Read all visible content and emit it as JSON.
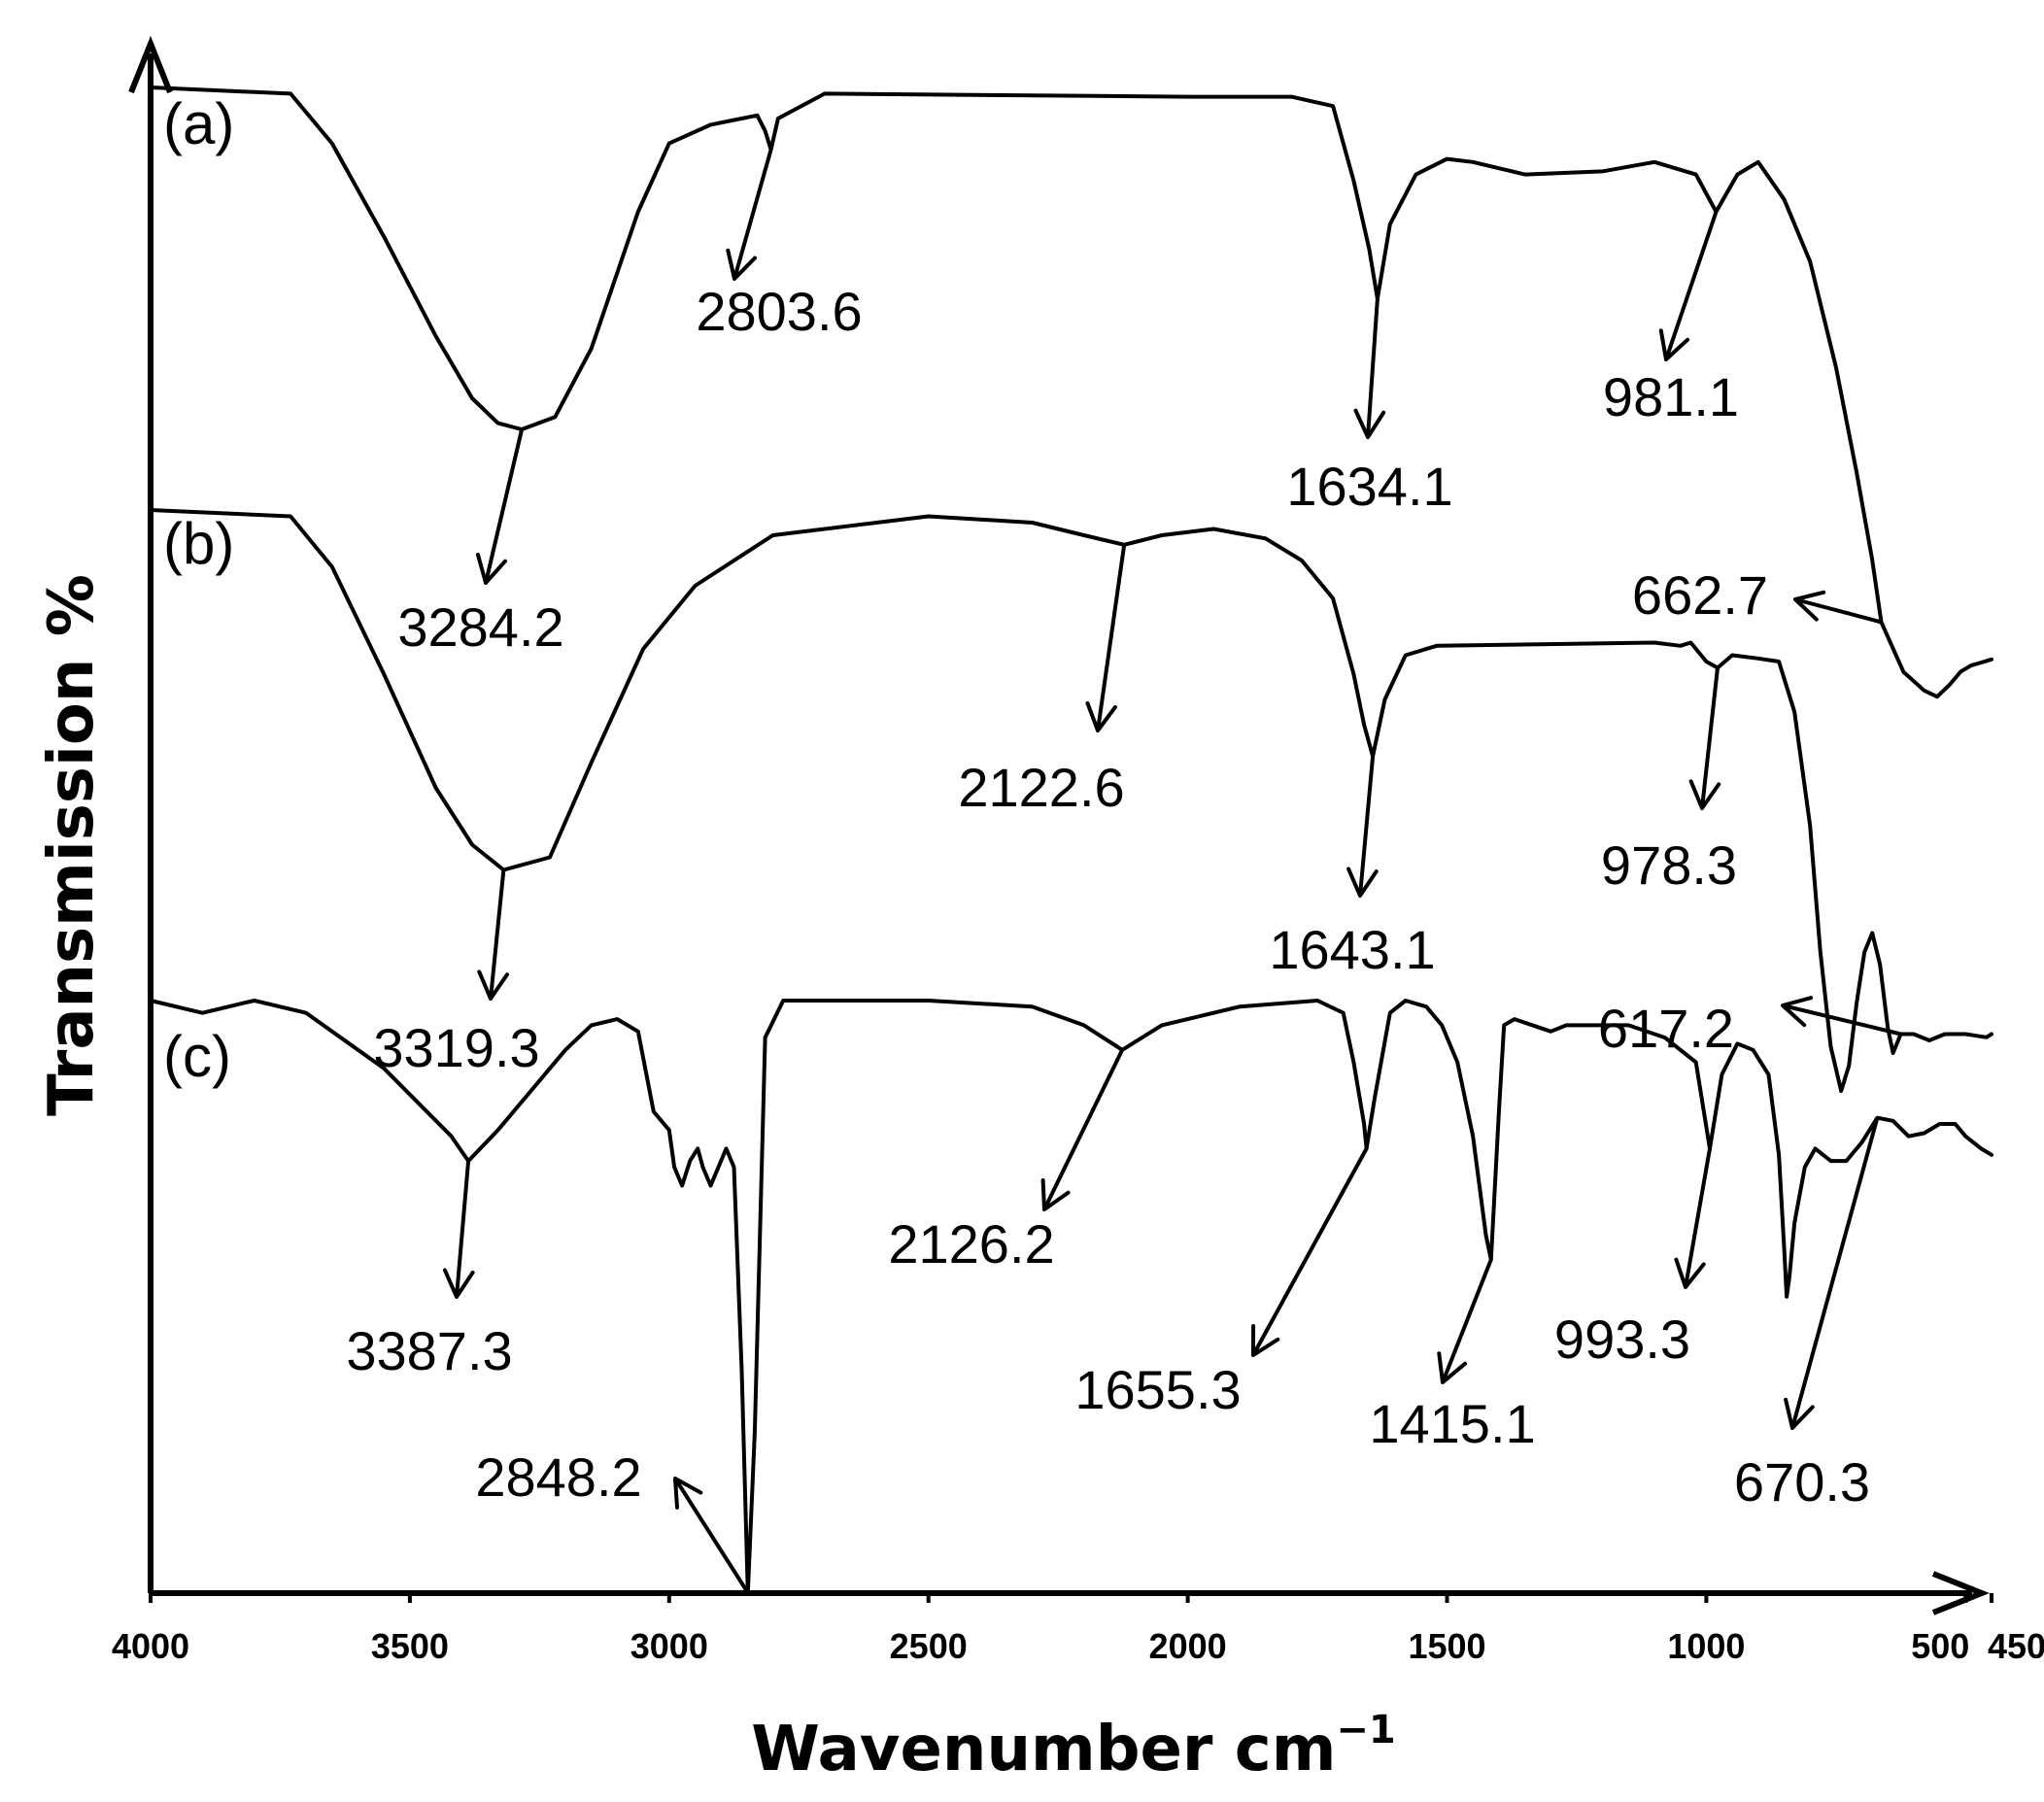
{
  "chart_data": {
    "type": "line",
    "title": "",
    "xlabel": "Wavenumber cm",
    "xlabel_superscript": "−1",
    "ylabel": "Transmission %",
    "x_axis_reversed": true,
    "xlim": [
      4000,
      450
    ],
    "x_ticks": [
      {
        "value": 4000,
        "label": "4000"
      },
      {
        "value": 3500,
        "label": "3500"
      },
      {
        "value": 3000,
        "label": "3000"
      },
      {
        "value": 2500,
        "label": "2500"
      },
      {
        "value": 2000,
        "label": "2000"
      },
      {
        "value": 1500,
        "label": "1500"
      },
      {
        "value": 1000,
        "label": "1000"
      },
      {
        "value": 500,
        "label": "500"
      },
      {
        "value": 450,
        "label": "450"
      }
    ],
    "y_ticks": [],
    "grid": false,
    "legend": "none",
    "series": [
      {
        "name": "(a)",
        "points": [
          [
            4000,
            100
          ],
          [
            3730,
            99
          ],
          [
            3650,
            91
          ],
          [
            3550,
            76
          ],
          [
            3450,
            60
          ],
          [
            3380,
            50
          ],
          [
            3330,
            46
          ],
          [
            3284.2,
            45
          ],
          [
            3220,
            47
          ],
          [
            3150,
            58
          ],
          [
            3060,
            80
          ],
          [
            3000,
            91
          ],
          [
            2920,
            94
          ],
          [
            2830,
            95.5
          ],
          [
            2815,
            93
          ],
          [
            2803.6,
            90
          ],
          [
            2790,
            95
          ],
          [
            2700,
            99
          ],
          [
            2000,
            98.5
          ],
          [
            1800,
            98.5
          ],
          [
            1720,
            97
          ],
          [
            1680,
            85
          ],
          [
            1650,
            74
          ],
          [
            1634.1,
            66
          ],
          [
            1610,
            78
          ],
          [
            1560,
            86
          ],
          [
            1500,
            88.5
          ],
          [
            1450,
            88
          ],
          [
            1350,
            86
          ],
          [
            1200,
            86.5
          ],
          [
            1100,
            88
          ],
          [
            1020,
            86
          ],
          [
            981.1,
            80
          ],
          [
            940,
            86
          ],
          [
            900,
            88
          ],
          [
            850,
            82
          ],
          [
            800,
            72
          ],
          [
            750,
            55
          ],
          [
            710,
            38
          ],
          [
            680,
            24
          ],
          [
            662.7,
            14
          ],
          [
            620,
            6
          ],
          [
            580,
            3
          ],
          [
            555,
            2
          ],
          [
            530,
            4
          ],
          [
            510,
            6
          ],
          [
            490,
            7
          ],
          [
            470,
            7.5
          ],
          [
            450,
            8
          ]
        ]
      },
      {
        "name": "(b)",
        "points": [
          [
            4000,
            100
          ],
          [
            3730,
            99
          ],
          [
            3650,
            91
          ],
          [
            3550,
            74
          ],
          [
            3450,
            56
          ],
          [
            3380,
            47
          ],
          [
            3319.3,
            43
          ],
          [
            3230,
            45
          ],
          [
            3150,
            60
          ],
          [
            3050,
            78
          ],
          [
            2950,
            88
          ],
          [
            2800,
            96
          ],
          [
            2500,
            99
          ],
          [
            2300,
            98
          ],
          [
            2200,
            96
          ],
          [
            2122.6,
            94.5
          ],
          [
            2050,
            96
          ],
          [
            1950,
            97
          ],
          [
            1850,
            95.5
          ],
          [
            1780,
            92
          ],
          [
            1720,
            86
          ],
          [
            1680,
            74
          ],
          [
            1660,
            66
          ],
          [
            1643.1,
            61
          ],
          [
            1620,
            70
          ],
          [
            1580,
            77
          ],
          [
            1520,
            78.5
          ],
          [
            1100,
            79
          ],
          [
            1050,
            78.5
          ],
          [
            1030,
            79
          ],
          [
            1000,
            76
          ],
          [
            978.3,
            75
          ],
          [
            950,
            77
          ],
          [
            900,
            76.5
          ],
          [
            860,
            76
          ],
          [
            830,
            68
          ],
          [
            800,
            50
          ],
          [
            780,
            30
          ],
          [
            760,
            15
          ],
          [
            740,
            8
          ],
          [
            725,
            12
          ],
          [
            710,
            22
          ],
          [
            695,
            30
          ],
          [
            680,
            33
          ],
          [
            665,
            28
          ],
          [
            650,
            18
          ],
          [
            640,
            14
          ],
          [
            625,
            17
          ],
          [
            600,
            17
          ],
          [
            570,
            16
          ],
          [
            540,
            17
          ],
          [
            500,
            17
          ],
          [
            460,
            16.5
          ],
          [
            450,
            17
          ]
        ]
      },
      {
        "name": "(c)",
        "points": [
          [
            4000,
            100
          ],
          [
            3900,
            98
          ],
          [
            3800,
            100
          ],
          [
            3700,
            98
          ],
          [
            3550,
            89
          ],
          [
            3420,
            78
          ],
          [
            3387.3,
            74
          ],
          [
            3330,
            79
          ],
          [
            3200,
            92
          ],
          [
            3150,
            96
          ],
          [
            3100,
            97
          ],
          [
            3060,
            95
          ],
          [
            3030,
            82
          ],
          [
            3000,
            79
          ],
          [
            2990,
            73
          ],
          [
            2975,
            70
          ],
          [
            2960,
            74
          ],
          [
            2945,
            76
          ],
          [
            2935,
            73
          ],
          [
            2920,
            70
          ],
          [
            2905,
            73
          ],
          [
            2890,
            76
          ],
          [
            2875,
            73
          ],
          [
            2860,
            40
          ],
          [
            2848.2,
            4
          ],
          [
            2835,
            30
          ],
          [
            2815,
            94
          ],
          [
            2780,
            100
          ],
          [
            2500,
            100
          ],
          [
            2300,
            99
          ],
          [
            2200,
            96
          ],
          [
            2126.2,
            92
          ],
          [
            2050,
            96
          ],
          [
            1900,
            99
          ],
          [
            1750,
            100
          ],
          [
            1700,
            98
          ],
          [
            1680,
            90
          ],
          [
            1660,
            80
          ],
          [
            1655.3,
            76
          ],
          [
            1640,
            84
          ],
          [
            1610,
            98
          ],
          [
            1580,
            100
          ],
          [
            1540,
            99
          ],
          [
            1510,
            96
          ],
          [
            1480,
            90
          ],
          [
            1450,
            78
          ],
          [
            1425,
            62
          ],
          [
            1415.1,
            58
          ],
          [
            1400,
            82
          ],
          [
            1390,
            96
          ],
          [
            1370,
            97
          ],
          [
            1300,
            95
          ],
          [
            1270,
            96
          ],
          [
            1150,
            96
          ],
          [
            1080,
            94
          ],
          [
            1020,
            90
          ],
          [
            993.3,
            76
          ],
          [
            970,
            88
          ],
          [
            940,
            93
          ],
          [
            910,
            92
          ],
          [
            880,
            88
          ],
          [
            860,
            75
          ],
          [
            850,
            60
          ],
          [
            845,
            52
          ],
          [
            840,
            55
          ],
          [
            830,
            64
          ],
          [
            810,
            73
          ],
          [
            790,
            76
          ],
          [
            760,
            74
          ],
          [
            730,
            74
          ],
          [
            700,
            77
          ],
          [
            670.3,
            81
          ],
          [
            640,
            80.5
          ],
          [
            610,
            78
          ],
          [
            580,
            78.5
          ],
          [
            550,
            80
          ],
          [
            520,
            80
          ],
          [
            500,
            78
          ],
          [
            470,
            76
          ],
          [
            450,
            75
          ]
        ]
      }
    ],
    "annotations": [
      {
        "series": "(a)",
        "label": "2803.6",
        "x": 2803.6
      },
      {
        "series": "(a)",
        "label": "3284.2",
        "x": 3284.2
      },
      {
        "series": "(a)",
        "label": "1634.1",
        "x": 1634.1
      },
      {
        "series": "(a)",
        "label": "981.1",
        "x": 981.1
      },
      {
        "series": "(a)",
        "label": "662.7",
        "x": 662.7
      },
      {
        "series": "(b)",
        "label": "3319.3",
        "x": 3319.3
      },
      {
        "series": "(b)",
        "label": "2122.6",
        "x": 2122.6
      },
      {
        "series": "(b)",
        "label": "1643.1",
        "x": 1643.1
      },
      {
        "series": "(b)",
        "label": "978.3",
        "x": 978.3
      },
      {
        "series": "(b)",
        "label": "617.2",
        "x": 617.2
      },
      {
        "series": "(c)",
        "label": "3387.3",
        "x": 3387.3
      },
      {
        "series": "(c)",
        "label": "2848.2",
        "x": 2848.2
      },
      {
        "series": "(c)",
        "label": "2126.2",
        "x": 2126.2
      },
      {
        "series": "(c)",
        "label": "1655.3",
        "x": 1655.3
      },
      {
        "series": "(c)",
        "label": "1415.1",
        "x": 1415.1
      },
      {
        "series": "(c)",
        "label": "993.3",
        "x": 993.3
      },
      {
        "series": "(c)",
        "label": "670.3",
        "x": 670.3
      }
    ]
  }
}
